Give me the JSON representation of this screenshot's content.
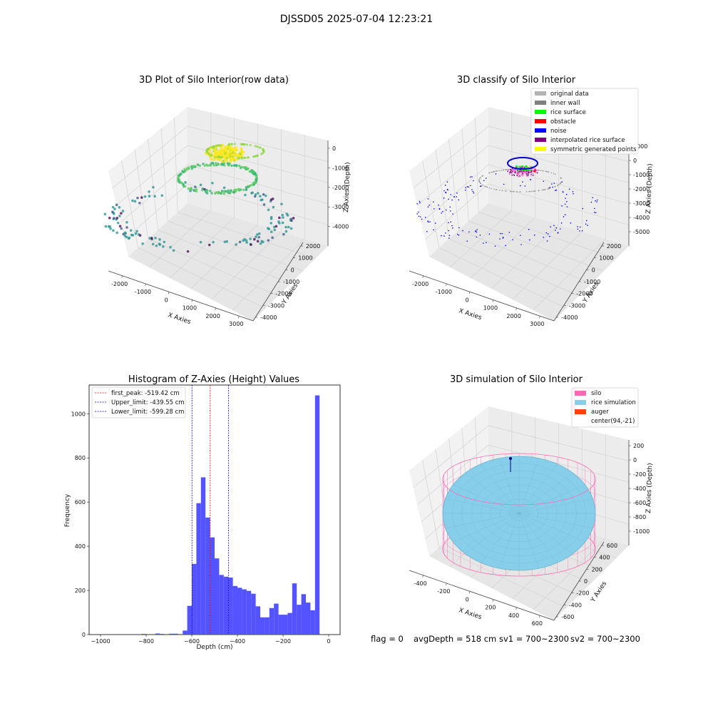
{
  "figure": {
    "suptitle": "DJSSD05 2025-07-04 12:23:21",
    "footer": {
      "flag": "flag = 0",
      "avg_depth": "avgDepth = 518 cm",
      "sv1": "sv1 = 700~2300",
      "sv2": "sv2 = 700~2300"
    }
  },
  "chart_data": [
    {
      "type": "scatter",
      "projection": "3d",
      "title": "3D Plot of Silo Interior(row data)",
      "xlabel": "X Axies",
      "ylabel": "Y Axies",
      "zlabel": "Z Axies (Depth)",
      "xticks": [
        "-2000",
        "-1000",
        "0",
        "1000",
        "2000",
        "3000"
      ],
      "yticks": [
        "2000",
        "1000",
        "0",
        "-1000",
        "-2000",
        "-3000",
        "-4000"
      ],
      "zticks": [
        "0",
        "-1000",
        "-2000",
        "-3000",
        "-4000"
      ],
      "colormap": "viridis",
      "grid": true
    },
    {
      "type": "scatter",
      "projection": "3d",
      "title": "3D classify of Silo Interior",
      "xlabel": "X Axies",
      "ylabel": "Y Axies",
      "zlabel": "Z Axies (Depth)",
      "xticks": [
        "-2000",
        "-1000",
        "0",
        "1000",
        "2000",
        "3000"
      ],
      "yticks": [
        "2000",
        "1000",
        "0",
        "-1000",
        "-2000",
        "-3000",
        "-4000"
      ],
      "zticks": [
        "1000",
        "0",
        "-1000",
        "-2000",
        "-3000",
        "-4000",
        "-5000"
      ],
      "legend_position": "top-right",
      "legend": [
        {
          "label": "original data",
          "color": "#b3b3b3"
        },
        {
          "label": "inner wall",
          "color": "#808080"
        },
        {
          "label": "rice surface",
          "color": "#00ff00"
        },
        {
          "label": "obstacle",
          "color": "#ff0000"
        },
        {
          "label": "noise",
          "color": "#0000ff"
        },
        {
          "label": "interpolated rice surface",
          "color": "#800080"
        },
        {
          "label": "symmetric generated points",
          "color": "#ffff00"
        }
      ],
      "grid": true
    },
    {
      "type": "bar",
      "title": "Histogram of Z-Axies (Height) Values",
      "xlabel": "Depth (cm)",
      "ylabel": "Frequency",
      "xlim": [
        -1050,
        50
      ],
      "ylim": [
        0,
        1130
      ],
      "xticks": [
        -1000,
        -800,
        -600,
        -400,
        -200,
        0
      ],
      "yticks": [
        0,
        200,
        400,
        600,
        800,
        1000
      ],
      "bar_color": "#4d4dff",
      "bin_width": 20,
      "bins": [
        {
          "x": -800,
          "y": 3
        },
        {
          "x": -740,
          "y": 5
        },
        {
          "x": -720,
          "y": 3
        },
        {
          "x": -680,
          "y": 4
        },
        {
          "x": -660,
          "y": 4
        },
        {
          "x": -620,
          "y": 18
        },
        {
          "x": -600,
          "y": 130
        },
        {
          "x": -580,
          "y": 320
        },
        {
          "x": -560,
          "y": 595
        },
        {
          "x": -540,
          "y": 712
        },
        {
          "x": -520,
          "y": 530
        },
        {
          "x": -500,
          "y": 440
        },
        {
          "x": -480,
          "y": 345
        },
        {
          "x": -460,
          "y": 270
        },
        {
          "x": -440,
          "y": 262
        },
        {
          "x": -420,
          "y": 258
        },
        {
          "x": -400,
          "y": 220
        },
        {
          "x": -380,
          "y": 212
        },
        {
          "x": -360,
          "y": 205
        },
        {
          "x": -340,
          "y": 198
        },
        {
          "x": -320,
          "y": 185
        },
        {
          "x": -300,
          "y": 128
        },
        {
          "x": -280,
          "y": 78
        },
        {
          "x": -260,
          "y": 78
        },
        {
          "x": -240,
          "y": 120
        },
        {
          "x": -220,
          "y": 140
        },
        {
          "x": -200,
          "y": 90
        },
        {
          "x": -180,
          "y": 90
        },
        {
          "x": -160,
          "y": 98
        },
        {
          "x": -140,
          "y": 232
        },
        {
          "x": -120,
          "y": 135
        },
        {
          "x": -100,
          "y": 183
        },
        {
          "x": -80,
          "y": 145
        },
        {
          "x": -60,
          "y": 110
        },
        {
          "x": -40,
          "y": 1083
        }
      ],
      "vlines": [
        {
          "label": "first_peak: -519.42 cm",
          "x": -519.42,
          "color": "#ff0000"
        },
        {
          "label": "Upper_limit: -439.55 cm",
          "x": -439.55,
          "color": "#0000cc"
        },
        {
          "label": "Lower_limit: -599.28 cm",
          "x": -599.28,
          "color": "#0000cc"
        }
      ],
      "legend_position": "top-left",
      "grid": false
    },
    {
      "type": "surface",
      "projection": "3d",
      "title": "3D simulation of Silo Interior",
      "xlabel": "X Axies",
      "ylabel": "Y Axies",
      "zlabel": "Z Axies (Depth)",
      "xticks": [
        "-400",
        "-200",
        "0",
        "200",
        "400",
        "600"
      ],
      "yticks": [
        "600",
        "400",
        "200",
        "0",
        "-200",
        "-400",
        "-600"
      ],
      "zticks": [
        "200",
        "0",
        "-200",
        "-400",
        "-600",
        "-800",
        "-1000"
      ],
      "legend_position": "top-right",
      "legend": [
        {
          "label": "silo",
          "color": "#ff69b4"
        },
        {
          "label": "rice simulation",
          "color": "#87ceeb"
        },
        {
          "label": "auger",
          "color": "#ff4500"
        },
        {
          "label": "center(94,-21)",
          "color": "#ffffff"
        }
      ],
      "grid": true
    }
  ]
}
